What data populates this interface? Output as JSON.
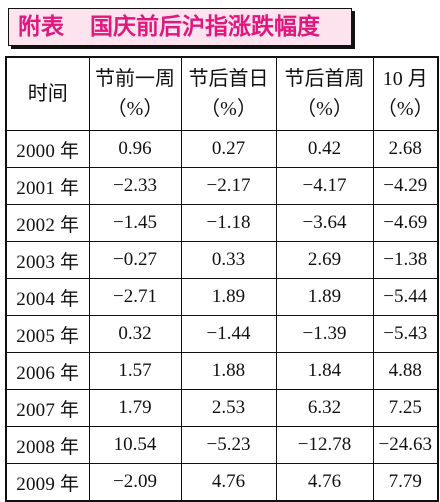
{
  "title": {
    "label": "附表",
    "text": "国庆前后沪指涨跌幅度"
  },
  "colors": {
    "title_text": "#e0177d",
    "title_bg": "#fce3ee",
    "rule": "#111111"
  },
  "chart_data": {
    "type": "table",
    "columns": [
      {
        "name": "时间"
      },
      {
        "name": "节前一周",
        "unit": "（%）"
      },
      {
        "name": "节后首日",
        "unit": "（%）"
      },
      {
        "name": "节后首周",
        "unit": "（%）"
      },
      {
        "name": "10 月",
        "unit": "（%）"
      }
    ],
    "rows": [
      {
        "time": "2000 年",
        "values": [
          0.96,
          0.27,
          0.42,
          2.68
        ]
      },
      {
        "time": "2001 年",
        "values": [
          -2.33,
          -2.17,
          -4.17,
          -4.29
        ]
      },
      {
        "time": "2002 年",
        "values": [
          -1.45,
          -1.18,
          -3.64,
          -4.69
        ]
      },
      {
        "time": "2003 年",
        "values": [
          -0.27,
          0.33,
          2.69,
          -1.38
        ]
      },
      {
        "time": "2004 年",
        "values": [
          -2.71,
          1.89,
          1.89,
          -5.44
        ]
      },
      {
        "time": "2005 年",
        "values": [
          0.32,
          -1.44,
          -1.39,
          -5.43
        ]
      },
      {
        "time": "2006 年",
        "values": [
          1.57,
          1.88,
          1.84,
          4.88
        ]
      },
      {
        "time": "2007 年",
        "values": [
          1.79,
          2.53,
          6.32,
          7.25
        ]
      },
      {
        "time": "2008 年",
        "values": [
          10.54,
          -5.23,
          -12.78,
          -24.63
        ]
      },
      {
        "time": "2009 年",
        "values": [
          -2.09,
          4.76,
          4.76,
          7.79
        ]
      }
    ]
  }
}
